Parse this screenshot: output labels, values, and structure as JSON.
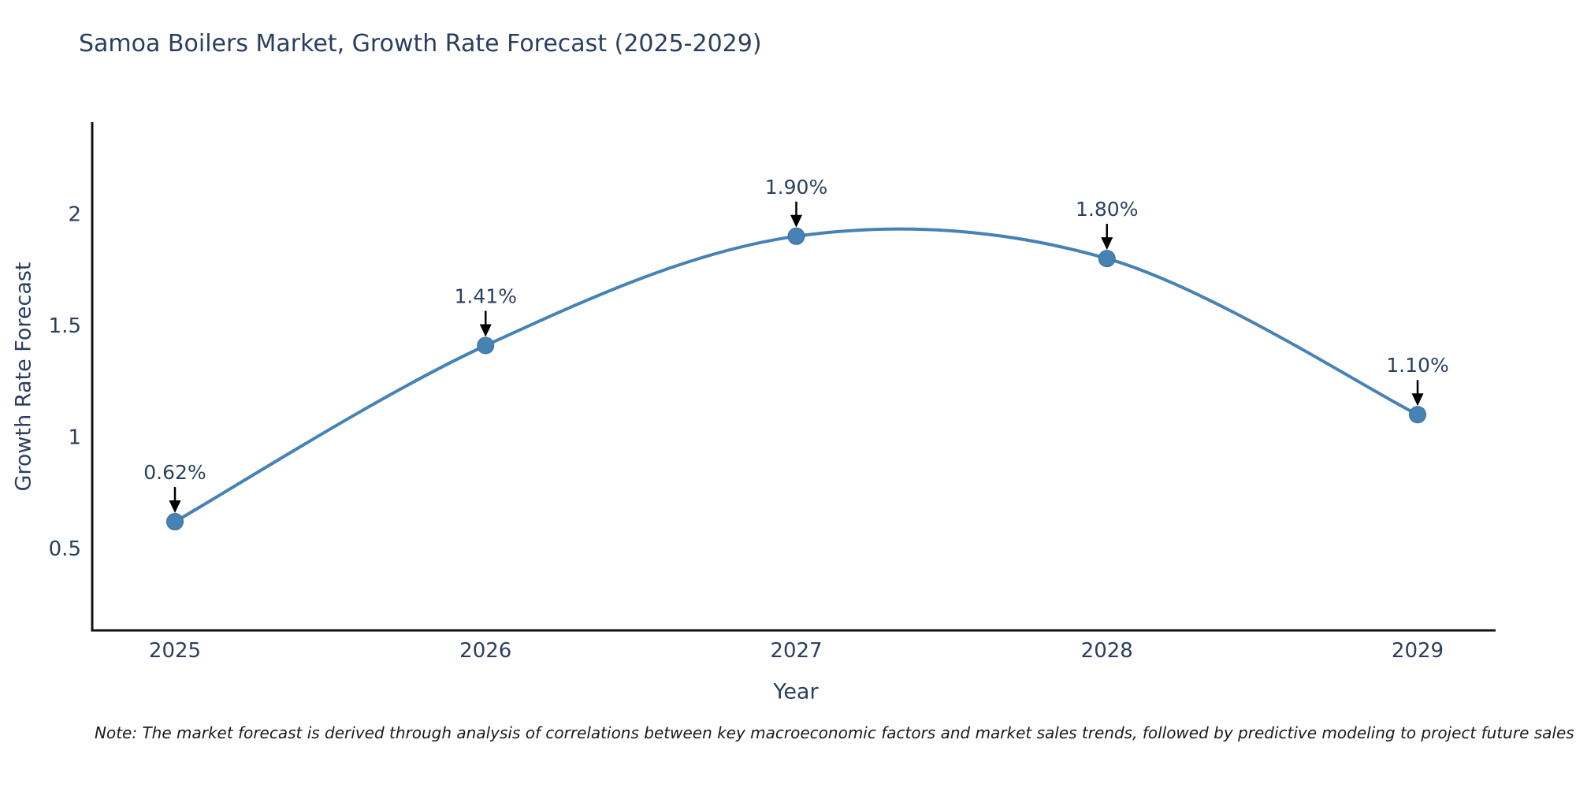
{
  "chart": {
    "title": "Samoa Boilers Market, Growth Rate Forecast (2025-2029)"
  },
  "chart_data": {
    "type": "line",
    "line_shape": "spline",
    "title": "Samoa Boilers Market, Growth Rate Forecast (2025-2029)",
    "x": [
      "2025",
      "2026",
      "2027",
      "2028",
      "2029"
    ],
    "y": [
      0.62,
      1.41,
      1.9,
      1.8,
      1.1
    ],
    "point_labels": [
      "0.62%",
      "1.41%",
      "1.90%",
      "1.80%",
      "1.10%"
    ],
    "xlabel": "Year",
    "ylabel": "Growth Rate Forecast",
    "yticks": [
      0.5,
      1,
      1.5,
      2
    ],
    "ylim": [
      0.13,
      2.41
    ],
    "grid": false,
    "legend": "none",
    "line_color": "#4682b4",
    "marker_color": "#4682b4",
    "marker_edge_color": "#3a6d99",
    "annotation_text_color": "#2a3f5f",
    "annotation_arrow_color": "#000000",
    "axis_line_color": "#111111",
    "tick_text_color": "#2a3f5f"
  },
  "note": {
    "text": "Note: The market forecast is derived through analysis of correlations between key macroeconomic factors and market sales trends, followed by predictive modeling to project future sales"
  }
}
